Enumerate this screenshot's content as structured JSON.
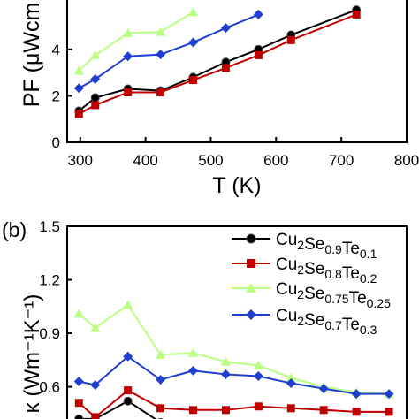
{
  "chart_data": [
    {
      "type": "line",
      "xlabel": "T (K)",
      "ylabel": "PF (μWcm",
      "xlim": [
        280,
        800
      ],
      "ylim": [
        0,
        6.2
      ],
      "xticks": [
        300,
        400,
        500,
        600,
        700,
        800
      ],
      "yticks": [
        0,
        2,
        4
      ],
      "series": [
        {
          "color": "#000000",
          "marker": "circle",
          "x": [
            298,
            323,
            373,
            423,
            473,
            523,
            573,
            623,
            723
          ],
          "y": [
            1.35,
            1.92,
            2.3,
            2.22,
            2.8,
            3.45,
            4.0,
            4.62,
            5.7
          ]
        },
        {
          "color": "#c00000",
          "marker": "square",
          "x": [
            298,
            323,
            373,
            423,
            473,
            523,
            573,
            623,
            723
          ],
          "y": [
            1.22,
            1.6,
            2.15,
            2.15,
            2.68,
            3.2,
            3.75,
            4.4,
            5.5
          ]
        },
        {
          "color": "#b9ff80",
          "marker": "triangle",
          "x": [
            298,
            323,
            373,
            423,
            473
          ],
          "y": [
            3.08,
            3.75,
            4.7,
            4.75,
            5.6
          ]
        },
        {
          "color": "#1f3fd1",
          "marker": "diamond",
          "x": [
            298,
            323,
            373,
            423,
            473,
            523,
            573
          ],
          "y": [
            2.33,
            2.72,
            3.7,
            3.78,
            4.3,
            4.92,
            5.5
          ]
        }
      ]
    },
    {
      "type": "line",
      "panel_label": "(b)",
      "ylabel": "κ (Wm⁻¹K⁻¹)",
      "xlim": [
        280,
        800
      ],
      "ylim": [
        0.36,
        1.5
      ],
      "yticks": [
        "1.5",
        "1.2",
        "0.9",
        "0.6"
      ],
      "legend_position": "top-right",
      "series": [
        {
          "name": "Cu2Se0.9Te0.1",
          "color": "#000000",
          "marker": "circle",
          "x": [
            298,
            323,
            373,
            423
          ],
          "y": [
            0.42,
            0.42,
            0.52,
            0.4
          ]
        },
        {
          "name": "Cu2Se0.8Te0.2",
          "color": "#c00000",
          "marker": "square",
          "x": [
            298,
            323,
            373,
            423,
            473,
            523,
            573,
            623,
            673,
            723,
            773
          ],
          "y": [
            0.51,
            0.43,
            0.58,
            0.48,
            0.47,
            0.47,
            0.49,
            0.48,
            0.47,
            0.46,
            0.46
          ]
        },
        {
          "name": "Cu2Se0.75Te0.25",
          "color": "#b9ff80",
          "marker": "triangle",
          "x": [
            298,
            323,
            373,
            423,
            473,
            523,
            573,
            623,
            673,
            723,
            773
          ],
          "y": [
            1.01,
            0.93,
            1.06,
            0.78,
            0.79,
            0.74,
            0.72,
            0.65,
            0.6,
            0.57,
            0.56
          ]
        },
        {
          "name": "Cu2Se0.7Te0.3",
          "color": "#1f3fd1",
          "marker": "diamond",
          "x": [
            298,
            323,
            373,
            423,
            473,
            523,
            573,
            623,
            673,
            723,
            773
          ],
          "y": [
            0.63,
            0.61,
            0.77,
            0.64,
            0.69,
            0.67,
            0.66,
            0.62,
            0.59,
            0.56,
            0.56
          ]
        }
      ]
    }
  ]
}
